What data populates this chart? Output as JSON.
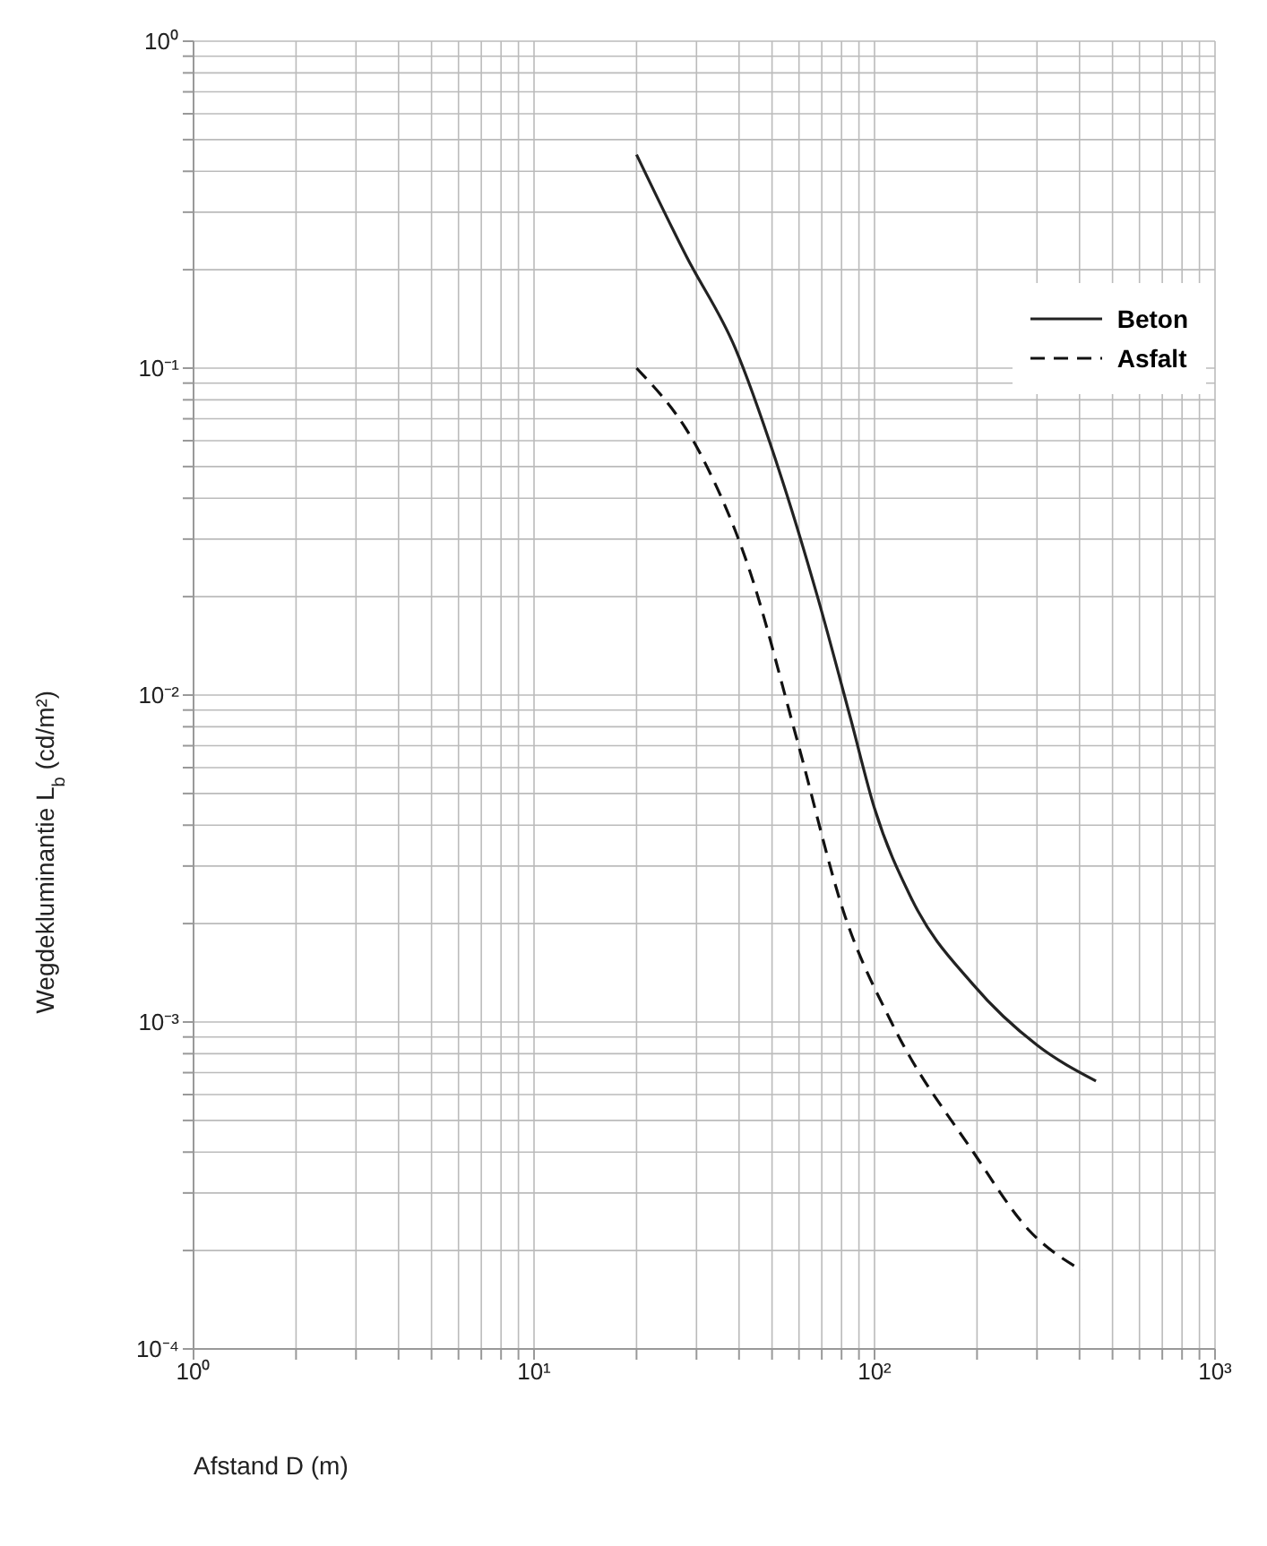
{
  "chart_data": {
    "type": "line",
    "xlabel": "Afstand D (m)",
    "ylabel": "Wegdekluminantie L$_{b}$ (cd/m²)",
    "log": "xy",
    "grid": true,
    "legend": "top right",
    "xlim": [
      1,
      1000
    ],
    "ylim": [
      0.0001,
      1
    ],
    "xticks": [
      {
        "value": 1,
        "label": "10⁰"
      },
      {
        "value": 2,
        "label": null
      },
      {
        "value": 3,
        "label": null
      },
      {
        "value": 4,
        "label": null
      },
      {
        "value": 5,
        "label": null
      },
      {
        "value": 6,
        "label": null
      },
      {
        "value": 7,
        "label": null
      },
      {
        "value": 8,
        "label": null
      },
      {
        "value": 9,
        "label": null
      },
      {
        "value": 10,
        "label": "10¹"
      },
      {
        "value": 20,
        "label": null
      },
      {
        "value": 30,
        "label": null
      },
      {
        "value": 40,
        "label": null
      },
      {
        "value": 50,
        "label": null
      },
      {
        "value": 60,
        "label": null
      },
      {
        "value": 70,
        "label": null
      },
      {
        "value": 80,
        "label": null
      },
      {
        "value": 90,
        "label": null
      },
      {
        "value": 100,
        "label": "10²"
      },
      {
        "value": 200,
        "label": null
      },
      {
        "value": 300,
        "label": null
      },
      {
        "value": 400,
        "label": null
      },
      {
        "value": 500,
        "label": null
      },
      {
        "value": 600,
        "label": null
      },
      {
        "value": 700,
        "label": null
      },
      {
        "value": 800,
        "label": null
      },
      {
        "value": 900,
        "label": null
      },
      {
        "value": 1000,
        "label": "10³"
      }
    ],
    "yticks": [
      {
        "value": 0.0001,
        "label": "10⁻⁴"
      },
      {
        "value": 0.0002,
        "label": null
      },
      {
        "value": 0.0003,
        "label": null
      },
      {
        "value": 0.0004,
        "label": null
      },
      {
        "value": 0.0005,
        "label": null
      },
      {
        "value": 0.0006,
        "label": null
      },
      {
        "value": 0.0007,
        "label": null
      },
      {
        "value": 0.0008,
        "label": null
      },
      {
        "value": 0.0009,
        "label": null
      },
      {
        "value": 0.001,
        "label": "10⁻³"
      },
      {
        "value": 0.002,
        "label": null
      },
      {
        "value": 0.003,
        "label": null
      },
      {
        "value": 0.004,
        "label": null
      },
      {
        "value": 0.005,
        "label": null
      },
      {
        "value": 0.006,
        "label": null
      },
      {
        "value": 0.007,
        "label": null
      },
      {
        "value": 0.008,
        "label": null
      },
      {
        "value": 0.009,
        "label": null
      },
      {
        "value": 0.01,
        "label": "10⁻²"
      },
      {
        "value": 0.02,
        "label": null
      },
      {
        "value": 0.03,
        "label": null
      },
      {
        "value": 0.04,
        "label": null
      },
      {
        "value": 0.05,
        "label": null
      },
      {
        "value": 0.06,
        "label": null
      },
      {
        "value": 0.07,
        "label": null
      },
      {
        "value": 0.08,
        "label": null
      },
      {
        "value": 0.09,
        "label": null
      },
      {
        "value": 0.1,
        "label": "10⁻¹"
      },
      {
        "value": 0.2,
        "label": null
      },
      {
        "value": 0.3,
        "label": null
      },
      {
        "value": 0.4,
        "label": null
      },
      {
        "value": 0.5,
        "label": null
      },
      {
        "value": 0.6,
        "label": null
      },
      {
        "value": 0.7,
        "label": null
      },
      {
        "value": 0.8,
        "label": null
      },
      {
        "value": 0.9,
        "label": null
      },
      {
        "value": 1,
        "label": "10⁰"
      }
    ],
    "series": [
      {
        "name": "Beton",
        "color": "#222222",
        "line_style": "solid",
        "x": [
          20,
          28,
          39,
          52,
          68,
          85,
          100,
          128,
          195,
          300,
          447
        ],
        "values": [
          0.45,
          0.22,
          0.115,
          0.05,
          0.02,
          0.0085,
          0.0045,
          0.0024,
          0.0013,
          0.00085,
          0.00066
        ]
      },
      {
        "name": "Asfalt",
        "color": "#111111",
        "line_style": "dashed",
        "x": [
          20,
          31,
          43,
          59,
          82,
          112,
          195,
          285,
          406
        ],
        "values": [
          0.1,
          0.054,
          0.024,
          0.0074,
          0.0021,
          0.001,
          0.0004,
          0.00023,
          0.000174
        ]
      }
    ]
  }
}
